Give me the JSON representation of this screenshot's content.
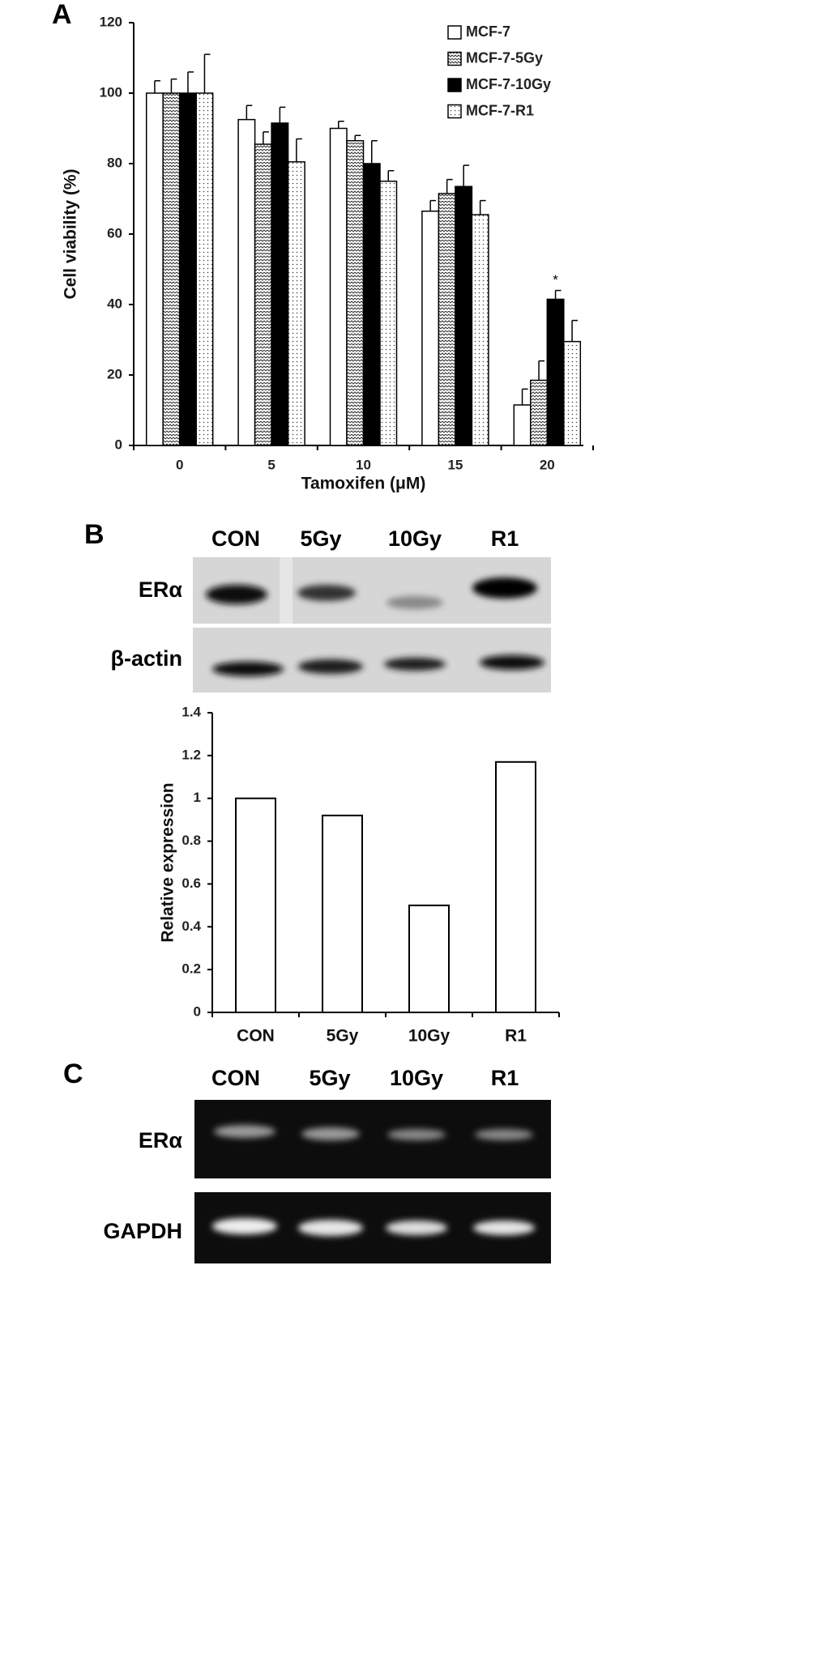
{
  "panel_labels": [
    "A",
    "B",
    "C"
  ],
  "chart_data": [
    {
      "type": "bar",
      "x_label": "Tamoxifen (μM)",
      "y_label": "Cell viability (%)",
      "categories": [
        "0",
        "5",
        "10",
        "15",
        "20"
      ],
      "series": [
        {
          "name": "MCF-7",
          "color": "#000000",
          "pattern": "none",
          "values": [
            100,
            92.5,
            90,
            66.5,
            11.5
          ],
          "errors": [
            3.5,
            4,
            2,
            3,
            4.5
          ]
        },
        {
          "name": "MCF-7-5Gy",
          "color": "#000000",
          "pattern": "zigzag",
          "values": [
            100,
            85.5,
            86.5,
            71.5,
            18.5
          ],
          "errors": [
            4,
            3.5,
            1.5,
            4,
            5.5
          ]
        },
        {
          "name": "MCF-7-10Gy",
          "color": "#000000",
          "pattern": "solid",
          "values": [
            100,
            91.5,
            80,
            73.5,
            41.5
          ],
          "errors": [
            6,
            4.5,
            6.5,
            6,
            2.5
          ]
        },
        {
          "name": "MCF-7-R1",
          "color": "#000000",
          "pattern": "dots",
          "values": [
            100,
            80.5,
            75,
            65.5,
            29.5
          ],
          "errors": [
            11,
            6.5,
            3,
            4,
            6
          ]
        }
      ],
      "annotations": [
        "*"
      ],
      "ylim": [
        0,
        120
      ],
      "yticks": [
        0,
        20,
        40,
        60,
        80,
        100,
        120
      ],
      "legend": "top-right"
    },
    {
      "type": "bar",
      "y_label": "Relative expression",
      "categories": [
        "CON",
        "5Gy",
        "10Gy",
        "R1"
      ],
      "values": [
        1,
        0.92,
        0.5,
        1.17
      ],
      "color": "#ffffff",
      "ylim": [
        0,
        1.4
      ],
      "yticks": [
        0,
        0.2,
        0.4,
        0.6,
        0.8,
        1,
        1.2,
        1.4
      ]
    }
  ],
  "blot_b": {
    "lanes": [
      "CON",
      "5Gy",
      "10Gy",
      "R1"
    ],
    "rows": [
      "ERα",
      "β-actin"
    ]
  },
  "gel_c": {
    "lanes": [
      "CON",
      "5Gy",
      "10Gy",
      "R1"
    ],
    "rows": [
      "ERα",
      "GAPDH"
    ]
  }
}
